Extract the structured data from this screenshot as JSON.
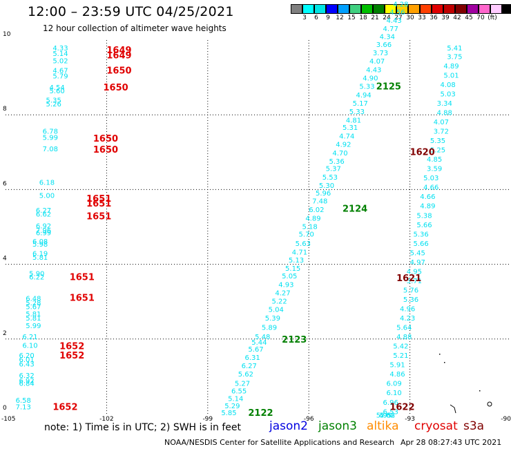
{
  "header": {
    "title": "12:00 – 23:59 UTC 04/25/2021",
    "subtitle": "12 hour collection of altimeter wave heights"
  },
  "legend": {
    "colors": [
      "#808080",
      "#00ffff",
      "#00e5e5",
      "#0000ff",
      "#00a0ff",
      "#40d080",
      "#00c000",
      "#008000",
      "#ffff00",
      "#ffd000",
      "#ffa000",
      "#ff4000",
      "#e00000",
      "#c00000",
      "#800000",
      "#a000a0",
      "#ff66cc",
      "#ffccff",
      "#000000"
    ],
    "labels": [
      {
        "i": 1,
        "t": "3"
      },
      {
        "i": 2,
        "t": "6"
      },
      {
        "i": 3,
        "t": "9"
      },
      {
        "i": 4,
        "t": "12"
      },
      {
        "i": 5,
        "t": "15"
      },
      {
        "i": 6,
        "t": "18"
      },
      {
        "i": 7,
        "t": "21"
      },
      {
        "i": 8,
        "t": "24"
      },
      {
        "i": 9,
        "t": "27"
      },
      {
        "i": 10,
        "t": "30"
      },
      {
        "i": 11,
        "t": "33"
      },
      {
        "i": 12,
        "t": "36"
      },
      {
        "i": 13,
        "t": "39"
      },
      {
        "i": 14,
        "t": "42"
      },
      {
        "i": 15,
        "t": "45"
      },
      {
        "i": 16,
        "t": "70"
      },
      {
        "i": 17,
        "t": "(ft)"
      }
    ]
  },
  "map": {
    "xlim": [
      -105,
      -90
    ],
    "ylim": [
      0,
      10
    ],
    "xticks": [
      -105,
      -102,
      -99,
      -96,
      -93,
      -90
    ],
    "yticks": [
      0,
      2,
      4,
      6,
      8,
      10
    ],
    "xtick_labels": [
      "-105",
      "-102",
      "-99",
      "-96",
      "-93",
      "-90"
    ],
    "ytick_labels": [
      "0",
      "2",
      "4",
      "6",
      "8",
      "10"
    ],
    "swh_color": "#00e0f0",
    "track_colors": {
      "cryosat": "#e00000",
      "jason3": "#008000",
      "s3a": "#800000"
    },
    "tracks": [
      {
        "id": "1649",
        "sat": "cryosat",
        "tx": -102.0,
        "ty": 9.72,
        "pts": [
          [
            -103.6,
            9.78,
            "4.33"
          ],
          [
            -103.6,
            9.63,
            "5.14"
          ],
          [
            -103.6,
            9.44,
            "5.02"
          ],
          [
            -103.6,
            9.18,
            "4.67"
          ],
          [
            -103.6,
            9.03,
            "5.79"
          ]
        ]
      },
      {
        "id": "1649",
        "sat": "cryosat",
        "tx": -102.0,
        "ty": 9.58,
        "pts": []
      },
      {
        "id": "1650",
        "sat": "cryosat",
        "tx": -102.0,
        "ty": 9.18,
        "pts": []
      },
      {
        "id": "1650",
        "sat": "cryosat",
        "tx": -102.1,
        "ty": 8.72,
        "pts": [
          [
            -103.7,
            8.72,
            "4.54"
          ],
          [
            -103.7,
            8.63,
            "5.60"
          ],
          [
            -103.8,
            8.38,
            "5.35"
          ],
          [
            -103.8,
            8.28,
            "5.26"
          ]
        ]
      },
      {
        "id": "1650",
        "sat": "cryosat",
        "tx": -102.4,
        "ty": 7.36,
        "pts": [
          [
            -103.9,
            7.55,
            "6.78"
          ],
          [
            -103.9,
            7.38,
            "5.99"
          ],
          [
            -103.9,
            7.08,
            "7.08"
          ]
        ]
      },
      {
        "id": "1650",
        "sat": "cryosat",
        "tx": -102.4,
        "ty": 7.06,
        "pts": []
      },
      {
        "id": "1651",
        "sat": "cryosat",
        "tx": -102.6,
        "ty": 5.75,
        "pts": [
          [
            -104.0,
            6.18,
            "6.18"
          ],
          [
            -104.0,
            5.83,
            "5.00"
          ],
          [
            -104.1,
            5.43,
            "6.27"
          ],
          [
            -104.1,
            5.33,
            "6.62"
          ],
          [
            -104.1,
            5.02,
            "6.92"
          ],
          [
            -104.1,
            4.9,
            "7.96"
          ],
          [
            -104.1,
            4.83,
            "6.99"
          ],
          [
            -104.2,
            4.6,
            "6.08"
          ],
          [
            -104.2,
            4.53,
            "5.98"
          ],
          [
            -104.2,
            4.28,
            "6.19"
          ],
          [
            -104.2,
            4.18,
            "5.81"
          ]
        ]
      },
      {
        "id": "1651",
        "sat": "cryosat",
        "tx": -102.6,
        "ty": 5.62,
        "pts": []
      },
      {
        "id": "1651",
        "sat": "cryosat",
        "tx": -102.6,
        "ty": 5.28,
        "pts": []
      },
      {
        "id": "1651",
        "sat": "cryosat",
        "tx": -103.1,
        "ty": 3.65,
        "pts": [
          [
            -104.3,
            3.74,
            "5.90"
          ],
          [
            -104.3,
            3.65,
            "6.22"
          ]
        ]
      },
      {
        "id": "1651",
        "sat": "cryosat",
        "tx": -103.1,
        "ty": 3.1,
        "pts": [
          [
            -104.4,
            3.08,
            "6.48"
          ],
          [
            -104.4,
            2.96,
            "5.28"
          ],
          [
            -104.4,
            2.86,
            "5.67"
          ],
          [
            -104.4,
            2.66,
            "5.81"
          ],
          [
            -104.4,
            2.55,
            "5.81"
          ],
          [
            -104.4,
            2.35,
            "5.99"
          ]
        ]
      },
      {
        "id": "1652",
        "sat": "cryosat",
        "tx": -103.4,
        "ty": 1.8,
        "pts": [
          [
            -104.5,
            2.05,
            "6.21"
          ],
          [
            -104.5,
            1.82,
            "6.10"
          ],
          [
            -104.6,
            1.55,
            "6.20"
          ],
          [
            -104.6,
            1.44,
            "6.01"
          ],
          [
            -104.6,
            1.32,
            "6.43"
          ],
          [
            -104.6,
            1.02,
            "6.32"
          ],
          [
            -104.6,
            0.88,
            "6.92"
          ],
          [
            -104.6,
            0.8,
            "6.84"
          ]
        ]
      },
      {
        "id": "1652",
        "sat": "cryosat",
        "tx": -103.4,
        "ty": 1.55,
        "pts": []
      },
      {
        "id": "1652",
        "sat": "cryosat",
        "tx": -103.6,
        "ty": 0.18,
        "pts": [
          [
            -104.7,
            0.35,
            "6.58"
          ],
          [
            -104.7,
            0.18,
            "7.13"
          ]
        ]
      },
      {
        "id": "2122",
        "sat": "jason3",
        "tx": -97.8,
        "ty": 0.02,
        "pts": [
          [
            -98.6,
            0.02,
            "5.85"
          ],
          [
            -98.5,
            0.2,
            "5.29"
          ],
          [
            -98.4,
            0.4,
            "5.14"
          ],
          [
            -98.3,
            0.6,
            "6.55"
          ],
          [
            -98.2,
            0.8,
            "5.27"
          ],
          [
            -98.1,
            1.05,
            "5.62"
          ],
          [
            -98.0,
            1.28,
            "6.27"
          ],
          [
            -97.9,
            1.5,
            "6.31"
          ],
          [
            -97.8,
            1.72,
            "5.67"
          ],
          [
            -97.7,
            1.9,
            "5.44"
          ],
          [
            -97.6,
            2.05,
            "5.48"
          ]
        ]
      },
      {
        "id": "2123",
        "sat": "jason3",
        "tx": -96.8,
        "ty": 1.98,
        "pts": [
          [
            -97.4,
            2.3,
            "5.89"
          ],
          [
            -97.3,
            2.55,
            "5.39"
          ],
          [
            -97.2,
            2.78,
            "5.04"
          ],
          [
            -97.1,
            3.0,
            "5.22"
          ],
          [
            -97.0,
            3.23,
            "4.27"
          ],
          [
            -96.9,
            3.45,
            "4.93"
          ],
          [
            -96.8,
            3.68,
            "5.05"
          ],
          [
            -96.7,
            3.88,
            "5.15"
          ],
          [
            -96.6,
            4.1,
            "5.13"
          ],
          [
            -96.5,
            4.32,
            "4.71"
          ],
          [
            -96.4,
            4.55,
            "5.63"
          ],
          [
            -96.3,
            4.8,
            "5.70"
          ],
          [
            -96.2,
            5.0,
            "5.18"
          ],
          [
            -96.1,
            5.22,
            "4.89"
          ],
          [
            -96.0,
            5.45,
            "6.02"
          ],
          [
            -95.9,
            5.68,
            "7.48"
          ],
          [
            -95.8,
            5.9,
            "5.96"
          ],
          [
            -95.7,
            6.1,
            "5.30"
          ],
          [
            -95.6,
            6.32,
            "5.53"
          ]
        ]
      },
      {
        "id": "2124",
        "sat": "jason3",
        "tx": -95.0,
        "ty": 5.48,
        "pts": [
          [
            -95.5,
            6.55,
            "5.37"
          ],
          [
            -95.4,
            6.75,
            "5.36"
          ],
          [
            -95.3,
            6.97,
            "4.70"
          ],
          [
            -95.2,
            7.2,
            "4.92"
          ],
          [
            -95.1,
            7.42,
            "4.74"
          ],
          [
            -95.0,
            7.65,
            "5.31"
          ],
          [
            -94.9,
            7.85,
            "4.81"
          ],
          [
            -94.8,
            8.08,
            "5.33"
          ],
          [
            -94.7,
            8.3,
            "5.17"
          ],
          [
            -94.6,
            8.52,
            "4.94"
          ],
          [
            -94.5,
            8.75,
            "5.33"
          ]
        ]
      },
      {
        "id": "2125",
        "sat": "jason3",
        "tx": -94.0,
        "ty": 8.75,
        "pts": [
          [
            -94.4,
            8.97,
            "4.90"
          ],
          [
            -94.3,
            9.2,
            "4.43"
          ],
          [
            -94.2,
            9.43,
            "4.07"
          ],
          [
            -94.1,
            9.65,
            "3.73"
          ],
          [
            -94.0,
            9.87,
            "3.66"
          ],
          [
            -93.9,
            10.08,
            "4.34"
          ],
          [
            -93.8,
            10.3,
            "4.77"
          ],
          [
            -93.7,
            10.52,
            "4.43"
          ],
          [
            -93.6,
            10.74,
            "4.56"
          ],
          [
            -93.5,
            10.95,
            "4.28"
          ]
        ]
      },
      {
        "id": "1620",
        "sat": "s3a",
        "tx": -93.0,
        "ty": 7.0,
        "pts": [
          [
            -91.9,
            9.78,
            "5.41"
          ],
          [
            -91.9,
            9.55,
            "3.75"
          ],
          [
            -92.0,
            9.3,
            "4.89"
          ],
          [
            -92.0,
            9.05,
            "5.01"
          ],
          [
            -92.1,
            8.8,
            "4.08"
          ],
          [
            -92.1,
            8.55,
            "5.03"
          ],
          [
            -92.2,
            8.3,
            "3.34"
          ],
          [
            -92.2,
            8.05,
            "4.88"
          ],
          [
            -92.3,
            7.8,
            "4.07"
          ],
          [
            -92.3,
            7.55,
            "3.72"
          ],
          [
            -92.4,
            7.3,
            "5.35"
          ],
          [
            -92.4,
            7.05,
            "5.25"
          ],
          [
            -92.5,
            6.8,
            "4.85"
          ],
          [
            -92.5,
            6.55,
            "3.59"
          ],
          [
            -92.6,
            6.3,
            "5.03"
          ],
          [
            -92.6,
            6.05,
            "4.66"
          ],
          [
            -92.7,
            5.8,
            "4.66"
          ],
          [
            -92.7,
            5.55,
            "4.89"
          ],
          [
            -92.8,
            5.3,
            "5.38"
          ]
        ]
      },
      {
        "id": "1621",
        "sat": "s3a",
        "tx": -93.4,
        "ty": 3.62,
        "pts": [
          [
            -92.8,
            5.05,
            "5.66"
          ],
          [
            -92.9,
            4.8,
            "5.36"
          ],
          [
            -92.9,
            4.55,
            "5.66"
          ],
          [
            -93.0,
            4.3,
            "5.45"
          ],
          [
            -93.0,
            4.05,
            "4.97"
          ],
          [
            -93.1,
            3.8,
            "4.95"
          ],
          [
            -93.1,
            3.55,
            "5.71"
          ],
          [
            -93.2,
            3.3,
            "5.76"
          ],
          [
            -93.2,
            3.05,
            "5.36"
          ],
          [
            -93.3,
            2.8,
            "4.96"
          ],
          [
            -93.3,
            2.55,
            "4.23"
          ],
          [
            -93.4,
            2.3,
            "5.64"
          ],
          [
            -93.4,
            2.05,
            "4.88"
          ],
          [
            -93.5,
            1.8,
            "5.42"
          ],
          [
            -93.5,
            1.55,
            "5.21"
          ]
        ]
      },
      {
        "id": "1622",
        "sat": "s3a",
        "tx": -93.6,
        "ty": 0.18,
        "pts": [
          [
            -93.6,
            1.3,
            "5.91"
          ],
          [
            -93.6,
            1.05,
            "4.86"
          ],
          [
            -93.7,
            0.8,
            "6.09"
          ],
          [
            -93.7,
            0.55,
            "6.10"
          ],
          [
            -93.8,
            0.3,
            "6.96"
          ],
          [
            -93.8,
            0.05,
            "6.53"
          ],
          [
            -93.9,
            -0.2,
            "4.88"
          ],
          [
            -93.9,
            -0.45,
            "5.62"
          ],
          [
            -94.0,
            -0.7,
            "5.95"
          ]
        ]
      }
    ]
  },
  "footer": {
    "note": "note:  1) Time is in UTC;  2) SWH is in feet",
    "sats": [
      {
        "name": "jason2",
        "color": "#0000e0"
      },
      {
        "name": "jason3",
        "color": "#008000"
      },
      {
        "name": "altika",
        "color": "#ff8c00"
      },
      {
        "name": "cryosat",
        "color": "#e00000"
      },
      {
        "name": "s3a",
        "color": "#800000"
      }
    ],
    "credit": "NOAA/NESDIS Center for Satellite Applications and Research",
    "timestamp": "Apr 28 08:27:43 UTC 2021"
  }
}
